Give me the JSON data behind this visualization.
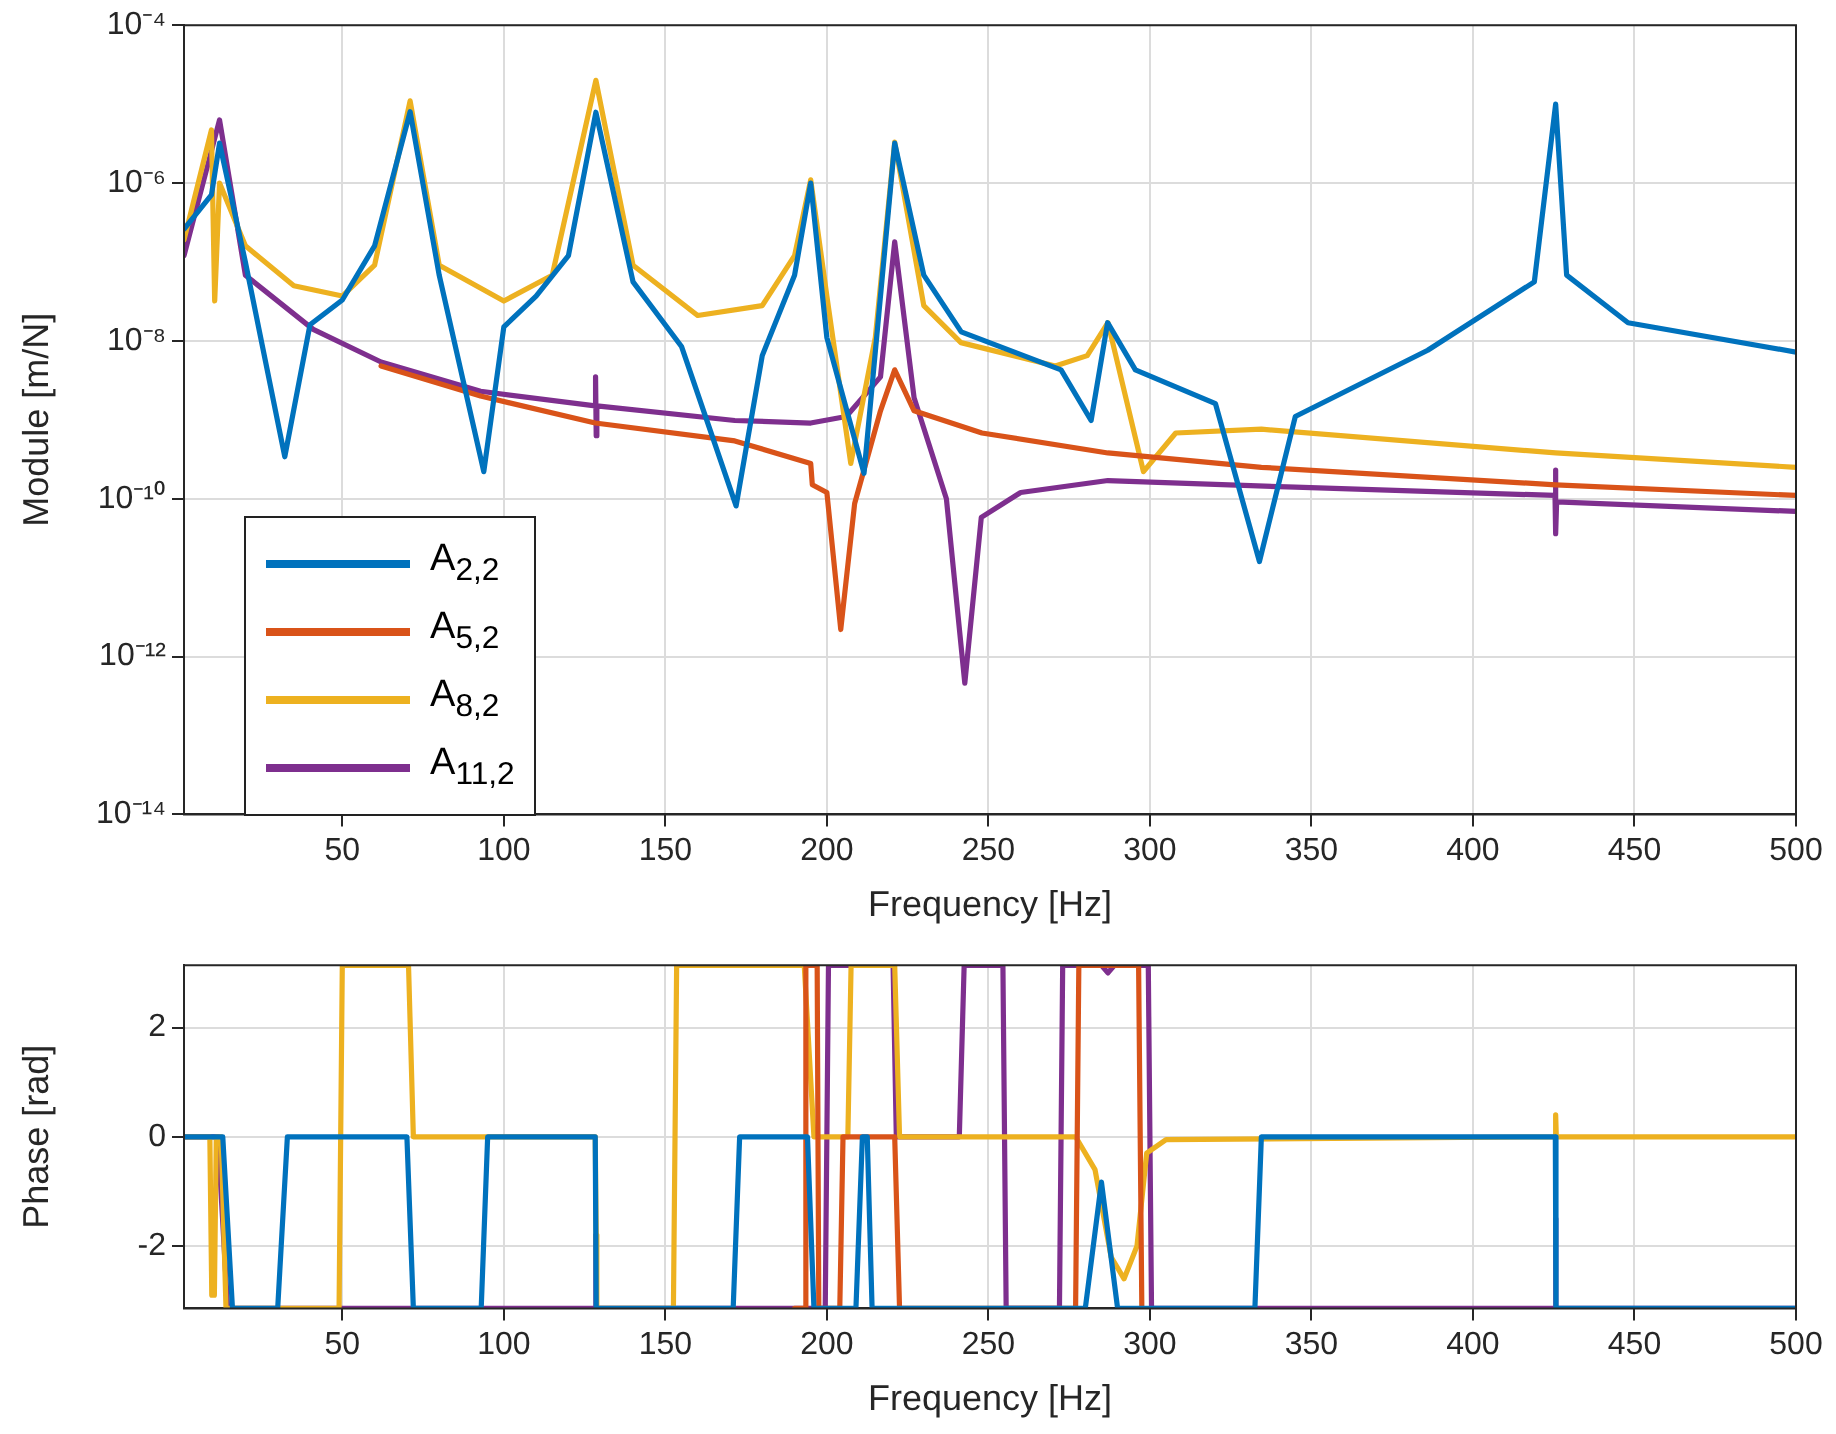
{
  "chart_data": [
    {
      "type": "line",
      "xlabel": "Frequency [Hz]",
      "ylabel": "Module [m/N]",
      "log": "y",
      "grid": true,
      "legend": "bottom left",
      "marker": "none",
      "line_style": "solid",
      "xlim": [
        1,
        500
      ],
      "xticks": [
        50,
        100,
        150,
        200,
        250,
        300,
        350,
        400,
        450,
        500
      ],
      "ylim": [
        1e-14,
        0.0001
      ],
      "yticks": [
        {
          "value": 1e-14,
          "label": "10⁻¹⁴"
        },
        {
          "value": 1e-12,
          "label": "10⁻¹²"
        },
        {
          "value": 1e-10,
          "label": "10⁻¹⁰"
        },
        {
          "value": 1e-08,
          "label": "10⁻⁸"
        },
        {
          "value": 1e-06,
          "label": "10⁻⁶"
        },
        {
          "value": 0.0001,
          "label": "10⁻⁴"
        }
      ],
      "series": [
        {
          "name": "A$_{2,2}$",
          "color": "#0072bd",
          "x": [
            1,
            9.5,
            12,
            20,
            32.2,
            40,
            50,
            60,
            71,
            80,
            93.8,
            100,
            110,
            120,
            128.5,
            140,
            155,
            171.9,
            180,
            190,
            195,
            200,
            211.5,
            221,
            230,
            241.6,
            272.5,
            281.8,
            286.9,
            295.5,
            320.3,
            333.9,
            345,
            386,
            419,
            425.6,
            429,
            448,
            500
          ],
          "values": [
            2.6e-07,
            7.1e-07,
            3.2e-06,
            1e-07,
            3.4e-10,
            1.6e-08,
            3.3e-08,
            1.6e-07,
            8e-06,
            6.8e-08,
            2.2e-10,
            1.5e-08,
            3.7e-08,
            1.2e-07,
            7.9e-06,
            5.6e-08,
            8.5e-09,
            8.1e-11,
            6.5e-09,
            6.8e-08,
            1e-06,
            1.1e-08,
            2.1e-10,
            3.2e-06,
            6.8e-08,
            1.3e-08,
            4.3e-09,
            9.8e-10,
            1.7e-08,
            4.3e-09,
            1.6e-09,
            1.6e-11,
            1.1e-09,
            7.6e-09,
            5.6e-08,
            1e-05,
            6.8e-08,
            1.7e-08,
            7.2e-09
          ]
        },
        {
          "name": "A$_{5,2}$",
          "color": "#d95319",
          "x": [
            62,
            92.8,
            128.3,
            171.5,
            195,
            195.5,
            200,
            204.3,
            208.6,
            216.6,
            221,
            227,
            248,
            287,
            334.5,
            425.6,
            500
          ],
          "values": [
            4.8e-09,
            2e-09,
            9.1e-10,
            5.4e-10,
            2.8e-10,
            1.5e-10,
            1.2e-10,
            2.2e-12,
            8.7e-11,
            1.3e-09,
            4.3e-09,
            1.3e-09,
            6.8e-10,
            3.8e-10,
            2.5e-10,
            1.5e-10,
            1.1e-10
          ]
        },
        {
          "name": "A$_{8,2}$",
          "color": "#edb120",
          "x": [
            1,
            9.5,
            10.5,
            12,
            20,
            35,
            50,
            60,
            71,
            80,
            100,
            115,
            128.5,
            140,
            160,
            180,
            190,
            195,
            200,
            207.4,
            215,
            221,
            230,
            241.5,
            270.7,
            280.6,
            287,
            298,
            308,
            334.5,
            425.6,
            500
          ],
          "values": [
            1.9e-07,
            4.7e-06,
            3.2e-08,
            1e-06,
            1.6e-07,
            5e-08,
            3.7e-08,
            9.1e-08,
            1.1e-05,
            9.1e-08,
            3.2e-08,
            6.8e-08,
            2e-05,
            9.1e-08,
            2.1e-08,
            2.8e-08,
            1.2e-07,
            1.1e-06,
            3.7e-08,
            2.8e-10,
            1.1e-08,
            3.3e-06,
            2.8e-08,
            9.5e-09,
            4.8e-09,
            6.5e-09,
            1.7e-08,
            2.2e-10,
            6.8e-10,
            7.6e-10,
            3.8e-10,
            2.5e-10
          ]
        },
        {
          "name": "A$_{11,2}$",
          "color": "#7e2f8e",
          "x": [
            1,
            12,
            20,
            41,
            62,
            92.8,
            128.3,
            128.4,
            128.6,
            128.8,
            171.5,
            195,
            206,
            216.6,
            221,
            227,
            237,
            242.7,
            247.8,
            260,
            287,
            345,
            425.4,
            425.5,
            425.7,
            425.9,
            500
          ],
          "values": [
            1.2e-07,
            6.3e-06,
            6.8e-08,
            1.4e-08,
            5.4e-09,
            2.3e-09,
            1.5e-09,
            3.5e-09,
            6.3e-10,
            1.5e-09,
            9.8e-10,
            9.1e-10,
            1.1e-09,
            3.5e-09,
            1.8e-07,
            1.9e-09,
            1e-10,
            4.6e-13,
            5.8e-11,
            1.2e-10,
            1.7e-10,
            1.4e-10,
            1.1e-10,
            2.3e-10,
            3.6e-11,
            9.1e-11,
            6.9e-11
          ]
        }
      ]
    },
    {
      "type": "line",
      "xlabel": "Frequency [Hz]",
      "ylabel": "Phase [rad]",
      "grid": true,
      "marker": "none",
      "line_style": "solid",
      "xlim": [
        1,
        500
      ],
      "xticks": [
        50,
        100,
        150,
        200,
        250,
        300,
        350,
        400,
        450,
        500
      ],
      "ylim": [
        -3.1416,
        3.1416
      ],
      "yticks": [
        -2,
        0,
        2
      ],
      "series": [
        {
          "color": "#0072bd",
          "x": [
            1,
            13,
            16,
            30,
            33,
            70,
            72,
            93,
            95,
            128.3,
            128.6,
            171,
            173,
            194,
            196,
            209,
            211,
            212.5,
            214,
            280,
            285,
            290,
            332.5,
            334.5,
            425.5,
            425.7,
            500
          ],
          "values": [
            0,
            0,
            -3.14,
            -3.14,
            0,
            0,
            -3.14,
            -3.14,
            0,
            0,
            -3.14,
            -3.14,
            0,
            0,
            -3.14,
            -3.14,
            0,
            0,
            -3.14,
            -3.14,
            -0.83,
            -3.14,
            -3.14,
            0,
            0,
            -3.14,
            -3.14
          ]
        },
        {
          "color": "#d95319",
          "x": [
            190,
            193,
            193.5,
            197,
            197.5,
            204,
            205,
            221,
            222.5,
            277,
            278,
            296.5,
            297.5
          ],
          "values": [
            -3.14,
            -3.14,
            3.14,
            3.14,
            -3.14,
            -3.14,
            0,
            0,
            -3.14,
            -3.14,
            3.14,
            3.14,
            -3.14
          ]
        },
        {
          "color": "#edb120",
          "x": [
            1,
            9,
            9.6,
            10.4,
            11,
            12.5,
            14,
            49,
            50,
            70.5,
            72,
            128.3,
            128.6,
            128.8,
            152.5,
            153.5,
            193,
            196,
            206.5,
            207.5,
            221,
            222.5,
            277,
            283,
            288,
            292,
            296,
            299,
            305,
            425.4,
            425.6,
            425.8,
            500
          ],
          "values": [
            0,
            0,
            -2.9,
            -2.9,
            0,
            0,
            -3.14,
            -3.14,
            3.14,
            3.14,
            0,
            0,
            -1.8,
            -3.14,
            -3.14,
            3.14,
            3.14,
            0,
            0,
            3.14,
            3.14,
            0,
            0,
            -0.6,
            -2.2,
            -2.6,
            -2,
            -0.3,
            -0.05,
            0,
            0.4,
            0,
            0
          ]
        },
        {
          "color": "#7e2f8e",
          "x": [
            1,
            11.5,
            14.5,
            128.4,
            128.5,
            128.6,
            199.5,
            200.5,
            220.5,
            221.5,
            241,
            242.5,
            254.5,
            255.5,
            272,
            273,
            285,
            287,
            289,
            299.5,
            300.5,
            425.5,
            425.6,
            425.7,
            500
          ],
          "values": [
            0,
            0,
            -3.14,
            -3.14,
            -1.8,
            -3.14,
            -3.14,
            3.14,
            3.14,
            0,
            0,
            3.14,
            3.14,
            -3.14,
            -3.14,
            3.14,
            3.14,
            3,
            3.14,
            3.14,
            -3.14,
            -3.14,
            -1.5,
            -3.14,
            -3.14
          ]
        }
      ]
    }
  ]
}
